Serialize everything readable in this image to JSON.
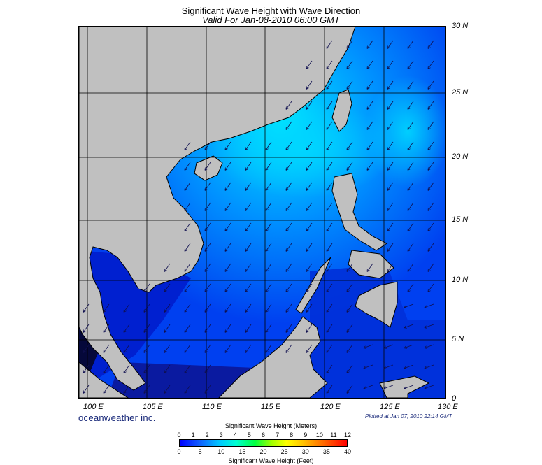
{
  "title": "Significant Wave Height with Wave Direction",
  "subtitle": "Valid For Jan-08-2010 06:00 GMT",
  "lat_labels": [
    "30 N",
    "25 N",
    "20 N",
    "15 N",
    "10 N",
    "5 N",
    "0"
  ],
  "lon_labels": [
    "100 E",
    "105 E",
    "110 E",
    "115 E",
    "120 E",
    "125 E",
    "130 E"
  ],
  "brand": "oceanweather inc.",
  "plotted": "Plotted at Jan 07, 2010 22:14 GMT",
  "legend": {
    "meters_label": "Significant Wave Height (Meters)",
    "meters_ticks": [
      "0",
      "1",
      "2",
      "3",
      "4",
      "5",
      "6",
      "7",
      "8",
      "9",
      "10",
      "11",
      "12"
    ],
    "feet_label": "Significant Wave Height (Feet)",
    "feet_ticks": [
      "0",
      "5",
      "10",
      "15",
      "20",
      "25",
      "30",
      "35",
      "40"
    ]
  },
  "colors": {
    "land": "#c0c0c0",
    "sea_low": "#0a1a9a",
    "sea_mid": "#0050ff",
    "sea_high": "#00e0ff",
    "arrow": "#101050"
  },
  "map_extent": {
    "lon": [
      99,
      130
    ],
    "lat": [
      0,
      30
    ]
  },
  "wave_direction": "mostly from northeast toward southwest"
}
